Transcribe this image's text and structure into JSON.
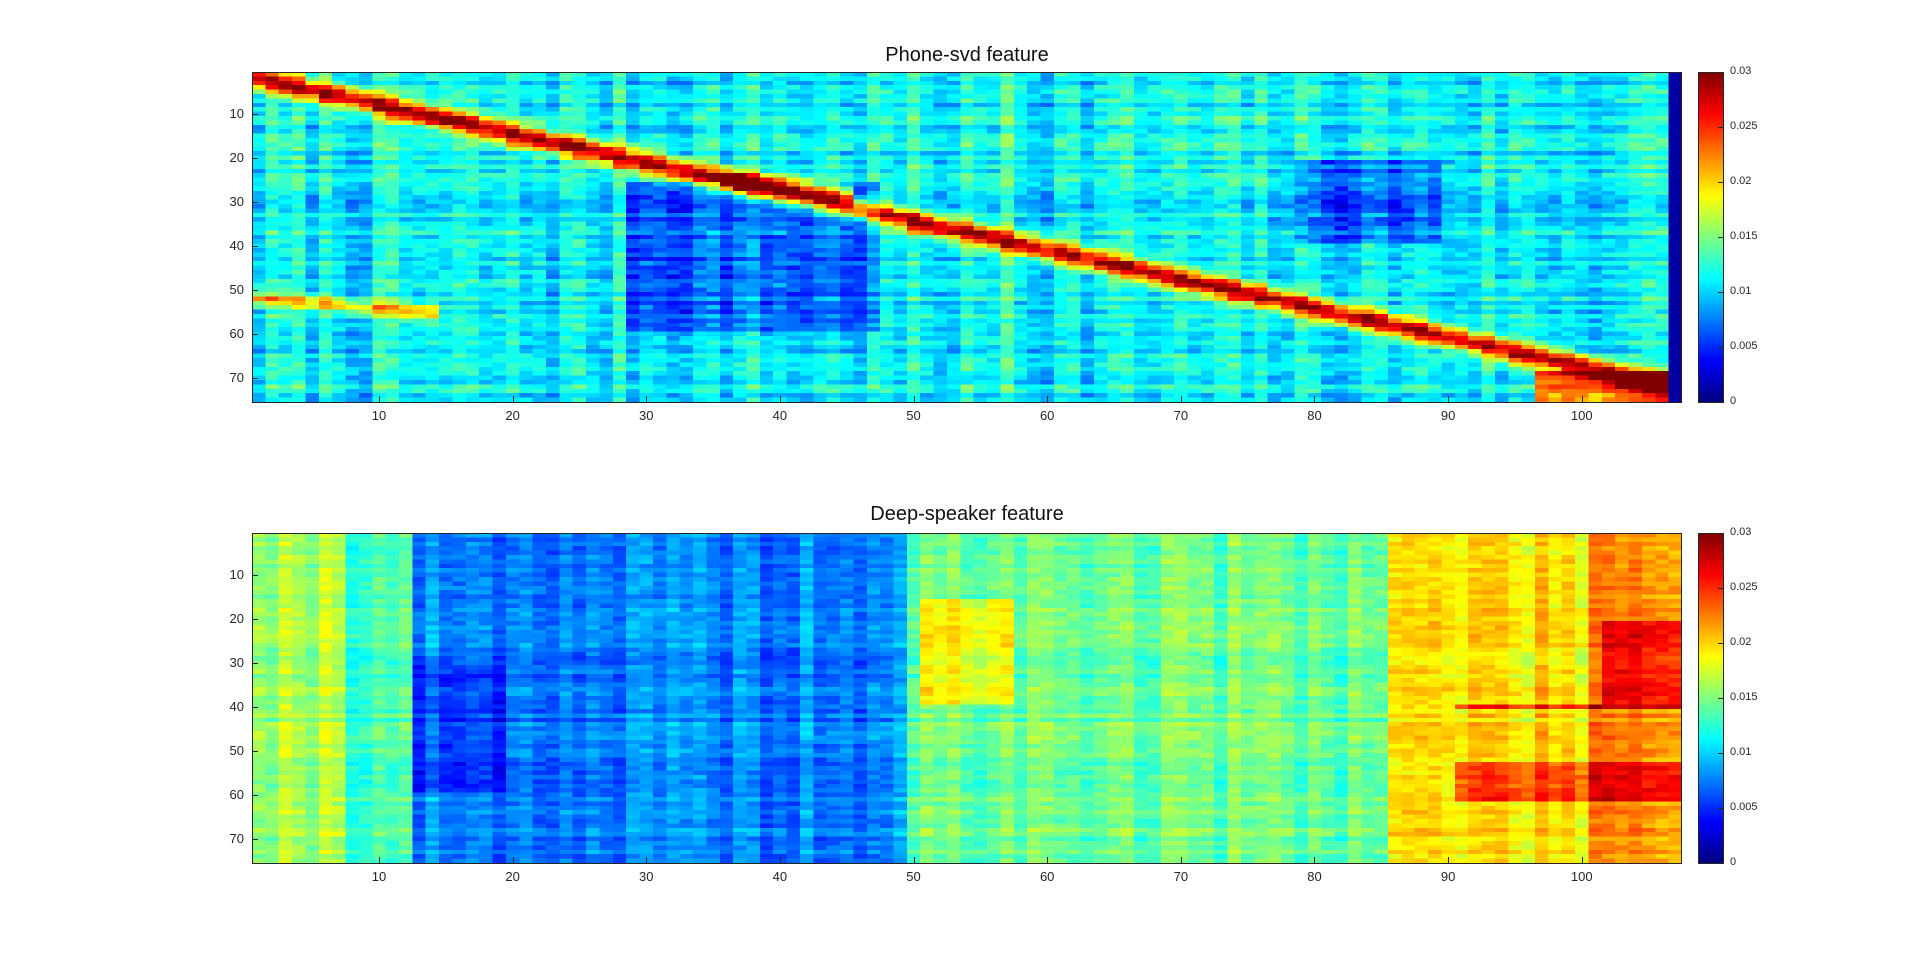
{
  "chart_data": [
    {
      "type": "heatmap",
      "title": "Phone-svd feature",
      "x_range": [
        1,
        107
      ],
      "y_range": [
        1,
        75
      ],
      "x_ticks": [
        10,
        20,
        30,
        40,
        50,
        60,
        70,
        80,
        90,
        100
      ],
      "y_ticks": [
        10,
        20,
        30,
        40,
        50,
        60,
        70
      ],
      "colorbar": {
        "min": 0,
        "max": 0.03,
        "ticks": [
          0,
          0.005,
          0.01,
          0.015,
          0.02,
          0.025,
          0.03
        ],
        "colormap": "jet"
      },
      "pattern": "diagonal",
      "xlabel": "",
      "ylabel": ""
    },
    {
      "type": "heatmap",
      "title": "Deep-speaker feature",
      "x_range": [
        1,
        107
      ],
      "y_range": [
        1,
        75
      ],
      "x_ticks": [
        10,
        20,
        30,
        40,
        50,
        60,
        70,
        80,
        90,
        100
      ],
      "y_ticks": [
        10,
        20,
        30,
        40,
        50,
        60,
        70
      ],
      "colorbar": {
        "min": 0,
        "max": 0.03,
        "ticks": [
          0,
          0.005,
          0.01,
          0.015,
          0.02,
          0.025,
          0.03
        ],
        "colormap": "jet"
      },
      "pattern": "columnar",
      "xlabel": "",
      "ylabel": ""
    }
  ],
  "cb_tick_labels": [
    "0",
    "0.005",
    "0.01",
    "0.015",
    "0.02",
    "0.025",
    "0.03"
  ]
}
